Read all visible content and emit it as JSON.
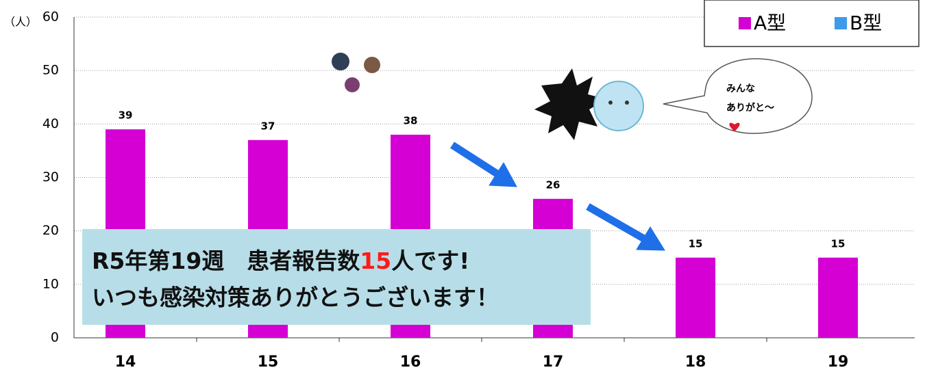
{
  "chart_data": {
    "type": "bar",
    "y_label": "（人）",
    "x_label": "（",
    "categories": [
      "14",
      "15",
      "16",
      "17",
      "18",
      "19"
    ],
    "series": [
      {
        "name": "A型",
        "color": "#d400d4",
        "values": [
          39,
          37,
          38,
          26,
          15,
          15
        ]
      },
      {
        "name": "B型",
        "color": "#3d9be9",
        "values": [
          null,
          null,
          null,
          null,
          null,
          null
        ]
      }
    ],
    "ylim": [
      0,
      60
    ],
    "yticks": [
      0,
      10,
      20,
      30,
      40,
      50,
      60
    ],
    "grid": true,
    "legend": "top-right",
    "annotations": {
      "banner_line1": [
        "R5年第19週　患者報告数",
        "15",
        "人です!"
      ],
      "banner_line2": "いつも感染対策ありがとうございます！",
      "bubble": [
        "みんな",
        "ありがと～"
      ]
    }
  }
}
